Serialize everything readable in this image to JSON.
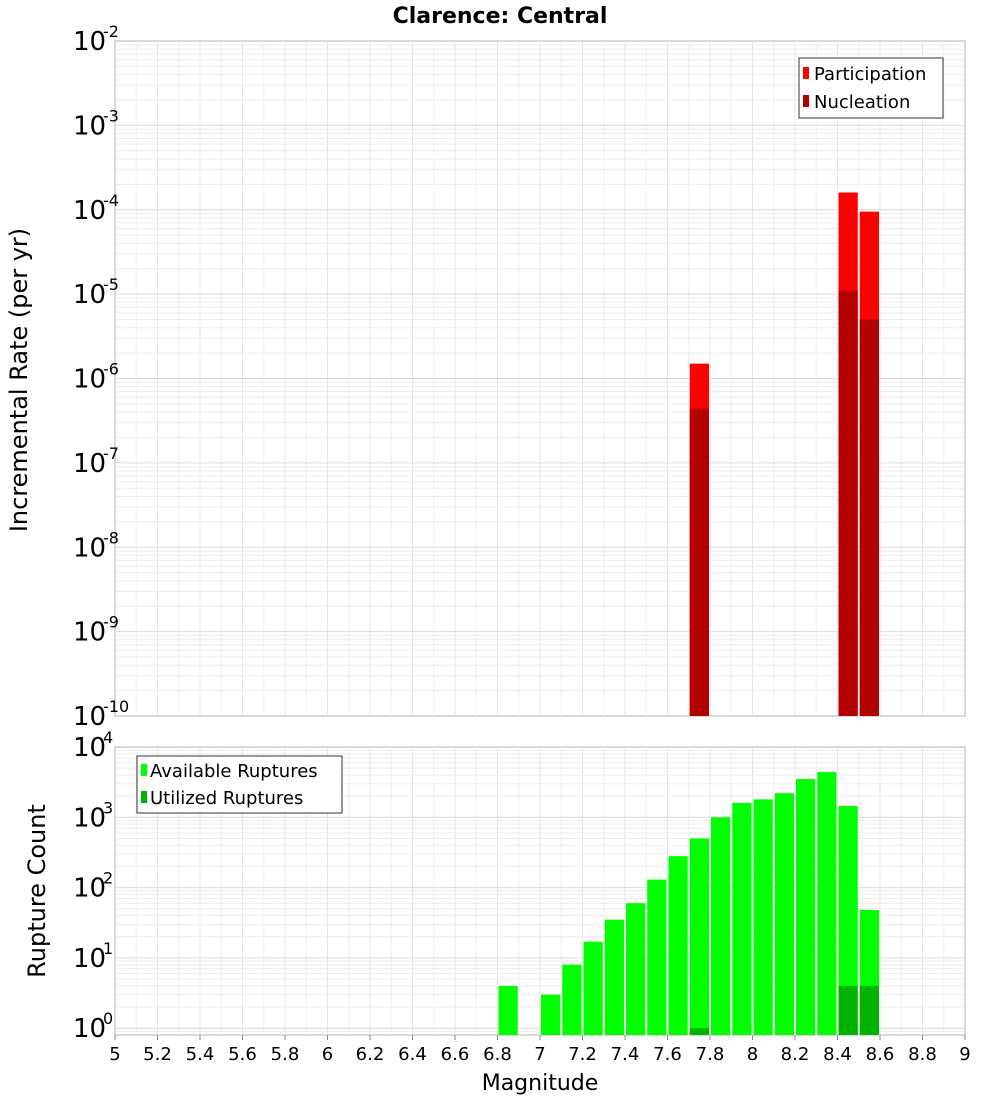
{
  "chart_data": [
    {
      "type": "bar",
      "title": "Clarence: Central",
      "xlabel": "",
      "ylabel": "Incremental Rate (per yr)",
      "xlim": [
        5,
        9
      ],
      "ylim": [
        1e-10,
        0.01
      ],
      "yscale": "log",
      "grid": true,
      "legend_position": "top-right",
      "bin_width": 0.1,
      "y_ticks": [
        {
          "base": "10",
          "exp": "-2"
        },
        {
          "base": "10",
          "exp": "-3"
        },
        {
          "base": "10",
          "exp": "-4"
        },
        {
          "base": "10",
          "exp": "-5"
        },
        {
          "base": "10",
          "exp": "-6"
        },
        {
          "base": "10",
          "exp": "-7"
        },
        {
          "base": "10",
          "exp": "-8"
        },
        {
          "base": "10",
          "exp": "-9"
        },
        {
          "base": "10",
          "exp": "-10"
        }
      ],
      "series": [
        {
          "name": "Participation",
          "color": "#ff0000",
          "x": [
            7.75,
            8.45,
            8.55
          ],
          "values": [
            1.5e-06,
            0.00016,
            9.5e-05
          ]
        },
        {
          "name": "Nucleation",
          "color": "#b30000",
          "x": [
            7.75,
            8.45,
            8.55
          ],
          "values": [
            4.4e-07,
            1.1e-05,
            5e-06
          ]
        }
      ]
    },
    {
      "type": "bar",
      "title": "",
      "xlabel": "Magnitude",
      "ylabel": "Rupture Count",
      "xlim": [
        5,
        9
      ],
      "ylim": [
        0.8,
        10000
      ],
      "yscale": "log",
      "grid": true,
      "legend_position": "top-left",
      "bin_width": 0.1,
      "x_ticks": [
        "5",
        "5.2",
        "5.4",
        "5.6",
        "5.8",
        "6",
        "6.2",
        "6.4",
        "6.6",
        "6.8",
        "7",
        "7.2",
        "7.4",
        "7.6",
        "7.8",
        "8",
        "8.2",
        "8.4",
        "8.6",
        "8.8",
        "9"
      ],
      "y_ticks": [
        {
          "base": "10",
          "exp": "4"
        },
        {
          "base": "10",
          "exp": "3"
        },
        {
          "base": "10",
          "exp": "2"
        },
        {
          "base": "10",
          "exp": "1"
        },
        {
          "base": "10",
          "exp": "0"
        }
      ],
      "series": [
        {
          "name": "Available Ruptures",
          "color": "#00ff00",
          "x": [
            6.85,
            7.05,
            7.15,
            7.25,
            7.35,
            7.45,
            7.55,
            7.65,
            7.75,
            7.85,
            7.95,
            8.05,
            8.15,
            8.25,
            8.35,
            8.45,
            8.55
          ],
          "values": [
            4,
            3,
            8,
            17,
            35,
            60,
            130,
            280,
            500,
            1000,
            1600,
            1800,
            2200,
            3500,
            4400,
            1450,
            48
          ]
        },
        {
          "name": "Utilized Ruptures",
          "color": "#00b300",
          "x": [
            7.75,
            8.45,
            8.55
          ],
          "values": [
            1,
            4,
            4
          ]
        }
      ]
    }
  ]
}
